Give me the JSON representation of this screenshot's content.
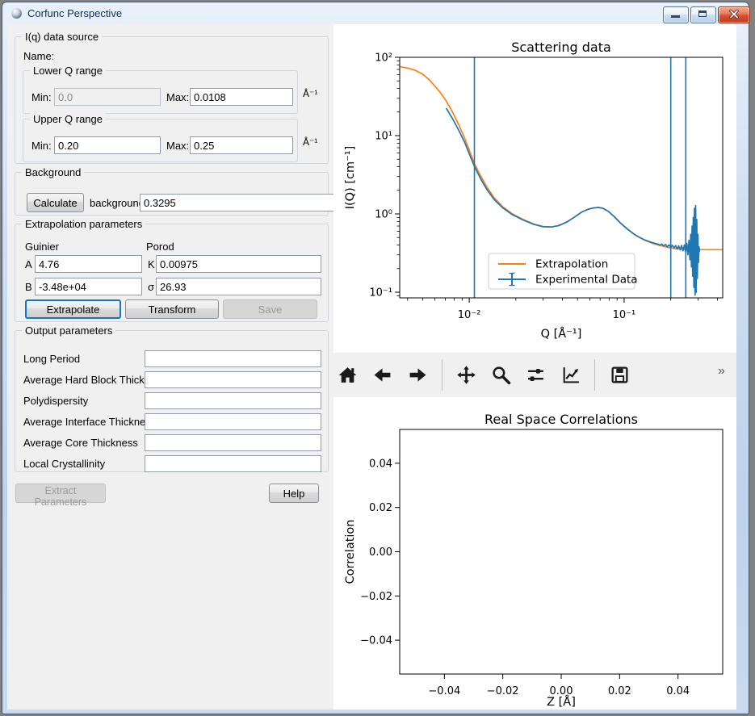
{
  "window": {
    "title": "Corfunc Perspective"
  },
  "left_panel": {
    "iq_group": {
      "title": "I(q) data source",
      "name_label": "Name:",
      "lower_q": {
        "title": "Lower Q range",
        "min_label": "Min:",
        "min_value": "0.0",
        "max_label": "Max:",
        "max_value": "0.0108",
        "unit": "Å⁻¹"
      },
      "upper_q": {
        "title": "Upper Q range",
        "min_label": "Min:",
        "min_value": "0.20",
        "max_label": "Max:",
        "max_value": "0.25",
        "unit": "Å⁻¹"
      }
    },
    "background_group": {
      "title": "Background",
      "calculate_button": "Calculate",
      "label": "background",
      "value": "0.3295"
    },
    "extrapolation_group": {
      "title": "Extrapolation parameters",
      "guinier_label": "Guinier",
      "porod_label": "Porod",
      "a_label": "A",
      "a_value": "4.76",
      "b_label": "B",
      "b_value": "-3.48e+04",
      "k_label": "K",
      "k_value": "0.00975",
      "sigma_label": "σ",
      "sigma_value": "26.93",
      "extrapolate_button": "Extrapolate",
      "transform_button": "Transform",
      "save_button": "Save"
    },
    "output_group": {
      "title": "Output parameters",
      "rows": [
        {
          "label": "Long Period",
          "value": ""
        },
        {
          "label": "Average Hard Block Thickness",
          "value": ""
        },
        {
          "label": "Polydispersity",
          "value": ""
        },
        {
          "label": "Average Interface Thickness",
          "value": ""
        },
        {
          "label": "Average Core Thickness",
          "value": ""
        },
        {
          "label": "Local Crystallinity",
          "value": ""
        }
      ]
    },
    "extract_button": "Extract Parameters",
    "help_button": "Help"
  },
  "toolbar": {
    "icons": [
      "home",
      "back",
      "forward",
      "pan",
      "zoom",
      "subplots",
      "customize",
      "save"
    ],
    "overflow": "»"
  },
  "chart_data": [
    {
      "type": "line",
      "title": "Scattering data",
      "xlabel": "Q [Å⁻¹]",
      "ylabel": "I(Q) [cm⁻¹]",
      "xscale": "log",
      "yscale": "log",
      "xlim": [
        0.003558,
        0.43278
      ],
      "ylim": [
        0.0847,
        100
      ],
      "grid": false,
      "legend_position": "lower center",
      "xticks": [
        {
          "v": 0.01,
          "label": "10⁻²"
        },
        {
          "v": 0.1,
          "label": "10⁻¹"
        }
      ],
      "yticks": [
        {
          "v": 100,
          "label": "10²"
        },
        {
          "v": 10,
          "label": "10¹"
        },
        {
          "v": 1,
          "label": "10⁰"
        },
        {
          "v": 0.1,
          "label": "10⁻¹"
        }
      ],
      "xminors": [
        0.004,
        0.005,
        0.006,
        0.007,
        0.008,
        0.009,
        0.02,
        0.03,
        0.04,
        0.05,
        0.06,
        0.07,
        0.08,
        0.09,
        0.2,
        0.3,
        0.4
      ],
      "yminors": [
        0.09,
        0.2,
        0.3,
        0.4,
        0.5,
        0.6,
        0.7,
        0.8,
        0.9,
        2,
        3,
        4,
        5,
        6,
        7,
        8,
        9,
        20,
        30,
        40,
        50,
        60,
        70,
        80,
        90
      ],
      "vlines": {
        "color": "#1f77b4",
        "x": [
          0.0108,
          0.2,
          0.25
        ]
      },
      "series": [
        {
          "name": "Extrapolation",
          "color": "#ff7f0e",
          "x": [
            0.00356,
            0.004,
            0.0045,
            0.005,
            0.0055,
            0.006,
            0.0064,
            0.007,
            0.0078,
            0.0086,
            0.0094,
            0.0101,
            0.0108,
            0.0118,
            0.013,
            0.0145,
            0.0165,
            0.019,
            0.022,
            0.026,
            0.03,
            0.034,
            0.038,
            0.043,
            0.048,
            0.053,
            0.058,
            0.063,
            0.068,
            0.073,
            0.079,
            0.086,
            0.095,
            0.105,
            0.12,
            0.135,
            0.15,
            0.17,
            0.19,
            0.21,
            0.24,
            0.28,
            0.33,
            0.38,
            0.4328
          ],
          "y": [
            76,
            73,
            68,
            61,
            52,
            43,
            37,
            29,
            20,
            13.5,
            9.0,
            6.2,
            4.4,
            3.1,
            2.2,
            1.6,
            1.23,
            1.0,
            0.86,
            0.745,
            0.69,
            0.682,
            0.712,
            0.795,
            0.915,
            1.05,
            1.14,
            1.19,
            1.21,
            1.18,
            1.08,
            0.93,
            0.76,
            0.64,
            0.525,
            0.465,
            0.425,
            0.395,
            0.375,
            0.362,
            0.353,
            0.35,
            0.349,
            0.349,
            0.349
          ]
        },
        {
          "name": "Experimental Data",
          "color": "#1f77b4",
          "x": [
            0.0071,
            0.0078,
            0.0086,
            0.0094,
            0.0101,
            0.0108,
            0.0118,
            0.013,
            0.0145,
            0.0165,
            0.019,
            0.022,
            0.026,
            0.03,
            0.034,
            0.038,
            0.043,
            0.048,
            0.053,
            0.058,
            0.063,
            0.068,
            0.073,
            0.079,
            0.086,
            0.095,
            0.105,
            0.115,
            0.125,
            0.135,
            0.145,
            0.155,
            0.165,
            0.17,
            0.175,
            0.18,
            0.185,
            0.19,
            0.195,
            0.2,
            0.205,
            0.21,
            0.215,
            0.22,
            0.225,
            0.23,
            0.235,
            0.24,
            0.245,
            0.25,
            0.254,
            0.258,
            0.262,
            0.266,
            0.269,
            0.272,
            0.2745,
            0.277,
            0.2795,
            0.282,
            0.2845,
            0.287,
            0.2895,
            0.292,
            0.2945,
            0.297,
            0.2995,
            0.302,
            0.3045,
            0.307
          ],
          "y": [
            22.4,
            16.5,
            11.5,
            8.0,
            5.6,
            4.05,
            2.85,
            2.05,
            1.52,
            1.19,
            0.98,
            0.845,
            0.738,
            0.685,
            0.68,
            0.71,
            0.795,
            0.915,
            1.05,
            1.14,
            1.19,
            1.21,
            1.18,
            1.08,
            0.93,
            0.76,
            0.64,
            0.556,
            0.506,
            0.468,
            0.444,
            0.426,
            0.412,
            0.4,
            0.413,
            0.39,
            0.408,
            0.38,
            0.402,
            0.372,
            0.398,
            0.366,
            0.394,
            0.356,
            0.392,
            0.348,
            0.396,
            0.338,
            0.402,
            0.326,
            0.42,
            0.3,
            0.46,
            0.26,
            0.55,
            0.21,
            0.7,
            0.16,
            0.9,
            0.115,
            1.18,
            0.092,
            1.28,
            0.1,
            0.85,
            0.15,
            0.55,
            0.24,
            0.38,
            0.33
          ]
        }
      ],
      "legend": {
        "entries": [
          {
            "label": "Extrapolation",
            "color": "#ff7f0e",
            "marker": "line"
          },
          {
            "label": "Experimental Data",
            "color": "#1f77b4",
            "marker": "errorbar"
          }
        ]
      }
    },
    {
      "type": "line",
      "title": "Real Space Correlations",
      "xlabel": "Z [Å]",
      "ylabel": "Correlation",
      "xscale": "linear",
      "yscale": "linear",
      "xlim": [
        -0.0553,
        0.0553
      ],
      "ylim": [
        -0.0553,
        0.0553
      ],
      "grid": false,
      "xticks": [
        {
          "v": -0.04,
          "label": "−0.04"
        },
        {
          "v": -0.02,
          "label": "−0.02"
        },
        {
          "v": 0.0,
          "label": "0.00"
        },
        {
          "v": 0.02,
          "label": "0.02"
        },
        {
          "v": 0.04,
          "label": "0.04"
        }
      ],
      "yticks": [
        {
          "v": 0.04,
          "label": "0.04"
        },
        {
          "v": 0.02,
          "label": "0.02"
        },
        {
          "v": 0.0,
          "label": "0.00"
        },
        {
          "v": -0.02,
          "label": "−0.02"
        },
        {
          "v": -0.04,
          "label": "−0.04"
        }
      ],
      "series": []
    }
  ]
}
